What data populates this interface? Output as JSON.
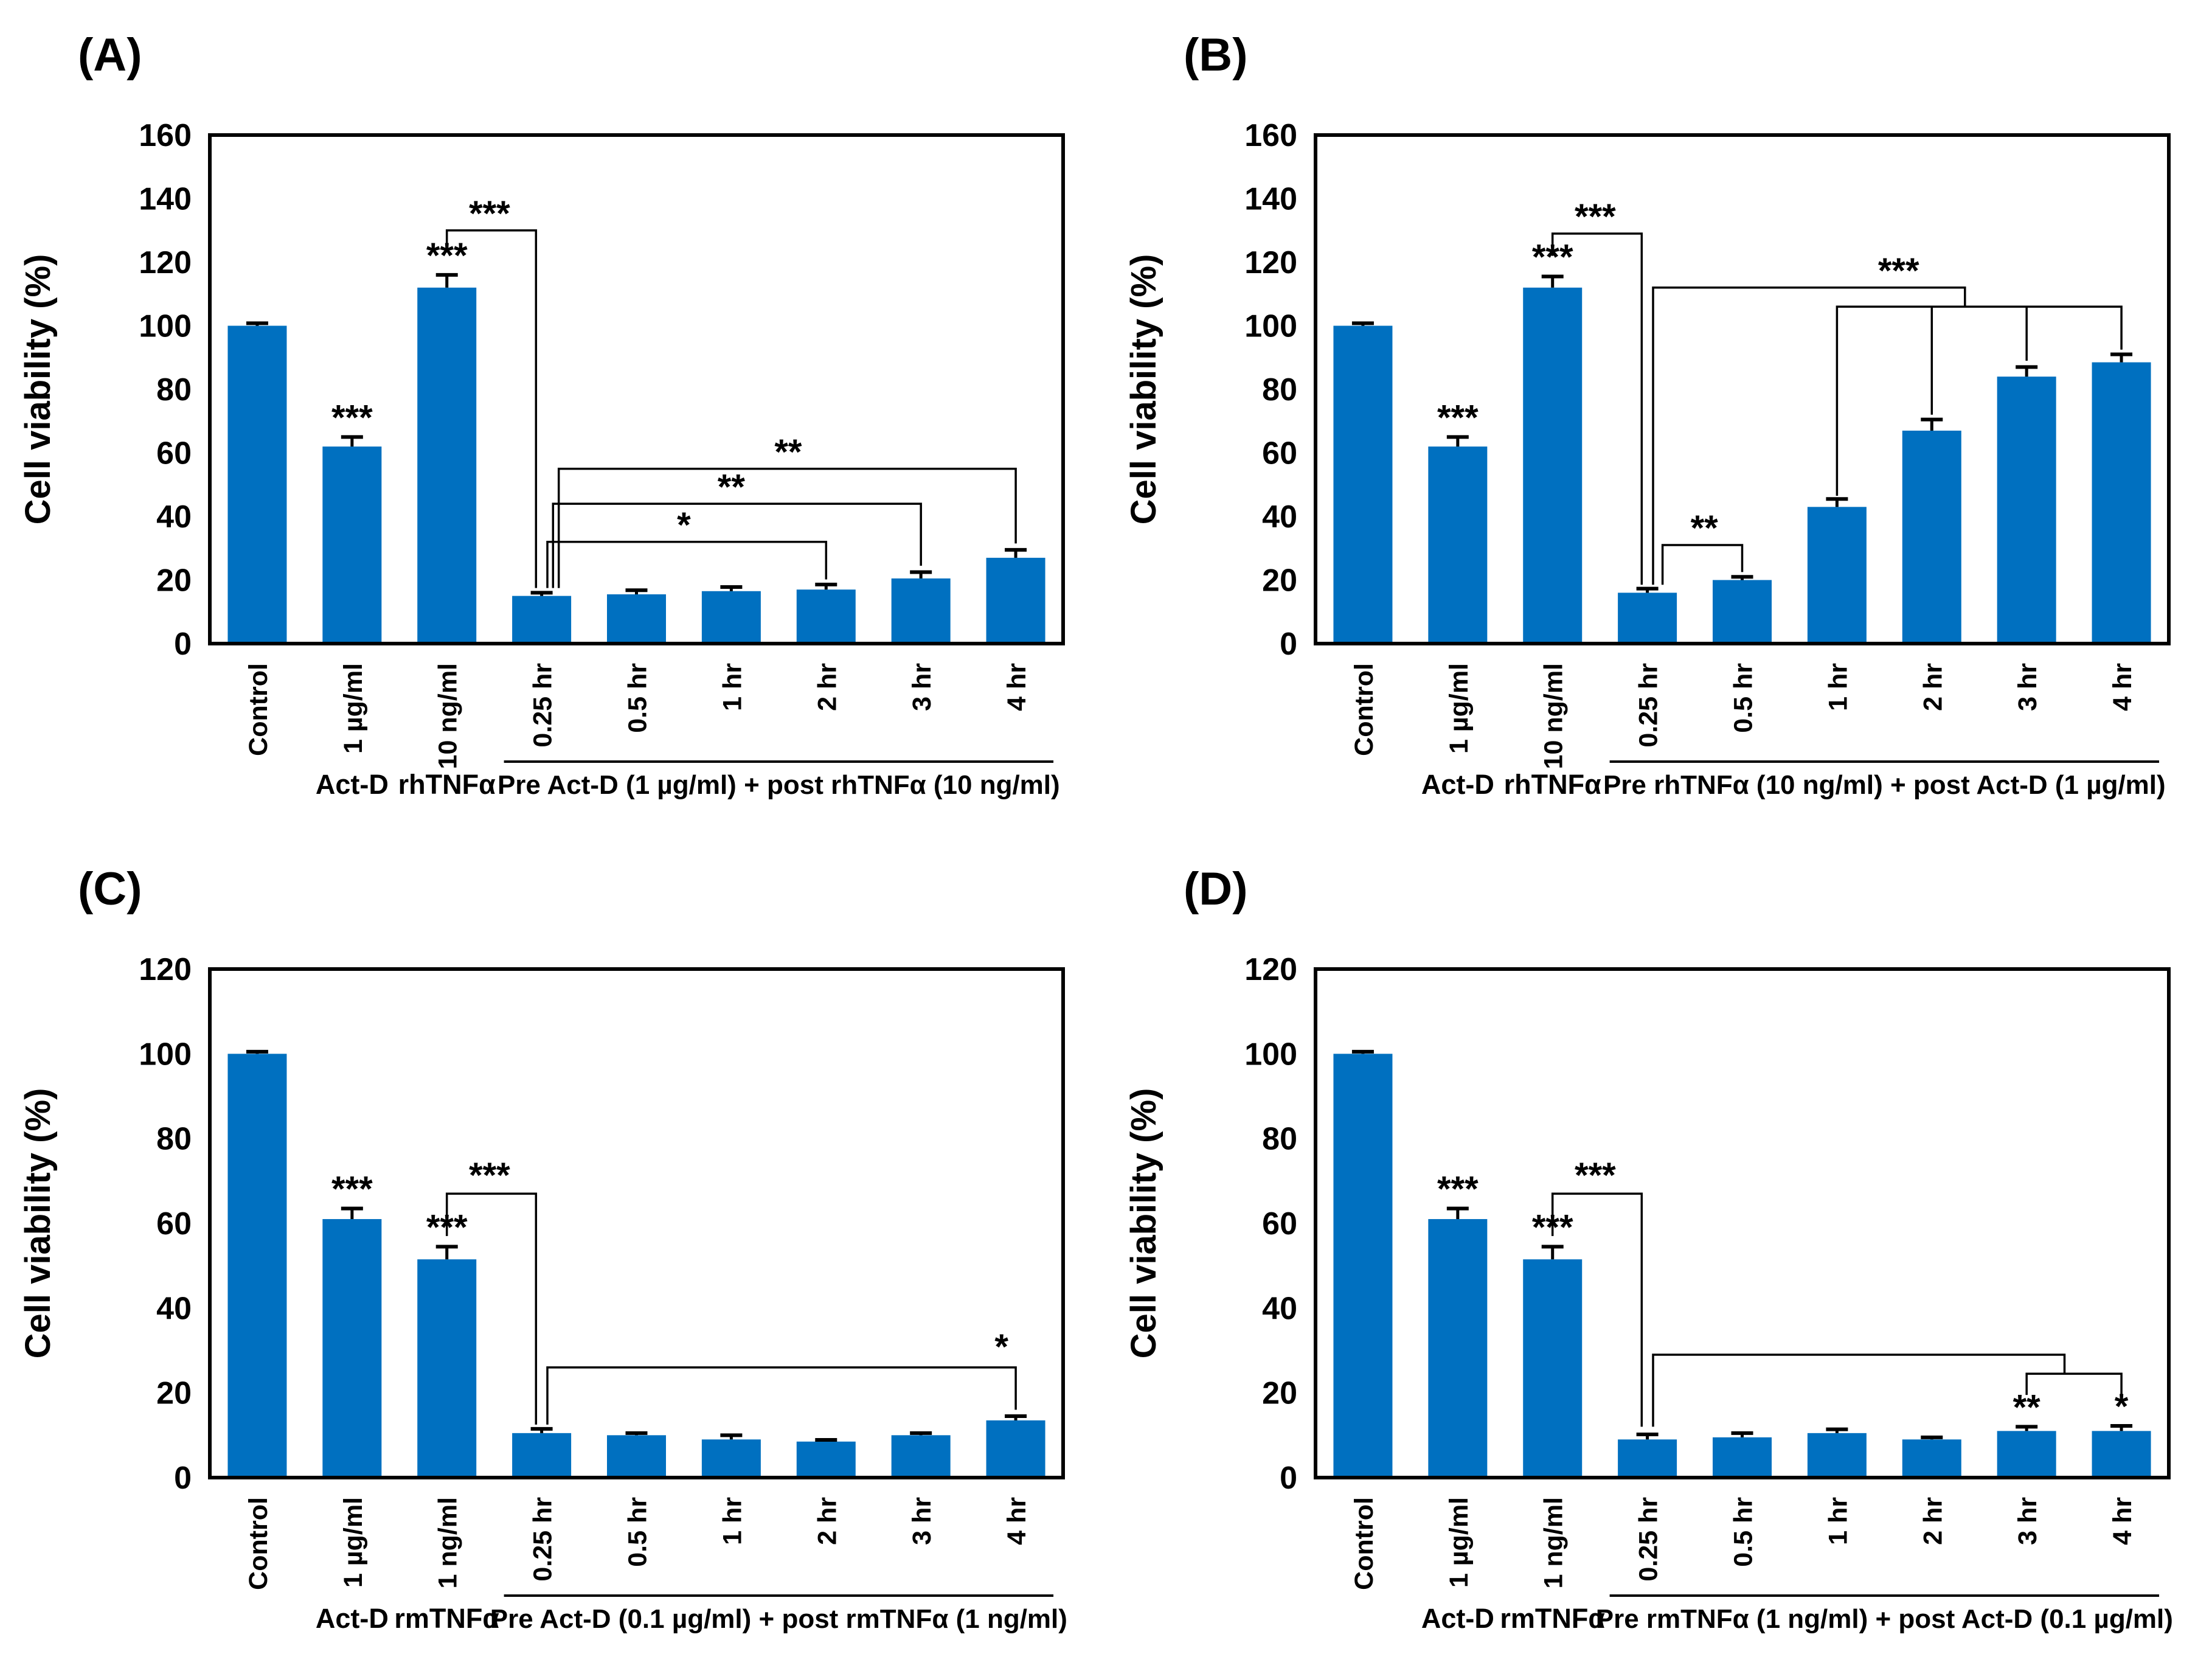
{
  "figure": {
    "bar_color": "#0070C0",
    "axis_color": "#000000",
    "background": "#ffffff"
  },
  "chart_data": [
    {
      "type": "bar",
      "panel_label": "(A)",
      "ylabel": "Cell viability (%)",
      "ylim": [
        0,
        160
      ],
      "ytick_step": 20,
      "grid": false,
      "legend": "none",
      "categories": [
        "Control",
        "1 µg/ml",
        "10 ng/ml",
        "0.25 hr",
        "0.5 hr",
        "1 hr",
        "2 hr",
        "3 hr",
        "4 hr"
      ],
      "values": [
        100,
        62,
        112,
        15,
        15.5,
        16.5,
        17,
        20.5,
        27
      ],
      "errors": [
        0.8,
        3,
        4,
        1,
        1.3,
        1.3,
        1.6,
        2,
        2.5
      ],
      "bar_stars": [
        {
          "index": 1,
          "text": "***"
        },
        {
          "index": 2,
          "text": "***"
        }
      ],
      "group_labels": [
        {
          "index": 1,
          "text": "Act-D"
        },
        {
          "index": 2,
          "text": "rhTNFα"
        }
      ],
      "span_label": {
        "from": 3,
        "to": 8,
        "text": "Pre Act-D (1 µg/ml) + post rhTNFα (10 ng/ml)"
      },
      "brackets": [
        {
          "points": [
            [
              2,
              123
            ],
            [
              2,
              130
            ],
            [
              2.94,
              130
            ],
            [
              2.94,
              17.5
            ]
          ],
          "label": "***",
          "label_at": [
            2.45,
            131.5
          ]
        },
        {
          "points": [
            [
              3.06,
              17.5
            ],
            [
              3.06,
              32
            ],
            [
              6,
              32
            ],
            [
              6,
              20.2
            ]
          ],
          "label": "*",
          "label_at": [
            4.5,
            33.5
          ]
        },
        {
          "points": [
            [
              3.12,
              17.5
            ],
            [
              3.12,
              44
            ],
            [
              7,
              44
            ],
            [
              7,
              24.5
            ]
          ],
          "label": "**",
          "label_at": [
            5,
            45.5
          ]
        },
        {
          "points": [
            [
              3.18,
              17.5
            ],
            [
              3.18,
              55
            ],
            [
              8,
              55
            ],
            [
              8,
              31.5
            ]
          ],
          "label": "**",
          "label_at": [
            5.6,
            56.5
          ]
        }
      ]
    },
    {
      "type": "bar",
      "panel_label": "(B)",
      "ylabel": "Cell viability (%)",
      "ylim": [
        0,
        160
      ],
      "ytick_step": 20,
      "grid": false,
      "legend": "none",
      "categories": [
        "Control",
        "1 µg/ml",
        "10 ng/ml",
        "0.25 hr",
        "0.5 hr",
        "1 hr",
        "2 hr",
        "3 hr",
        "4 hr"
      ],
      "values": [
        100,
        62,
        112,
        16,
        20,
        43,
        67,
        84,
        88.5
      ],
      "errors": [
        0.8,
        3,
        3.5,
        1.3,
        1,
        2.5,
        3.5,
        3,
        2.5
      ],
      "bar_stars": [
        {
          "index": 1,
          "text": "***"
        },
        {
          "index": 2,
          "text": "***"
        }
      ],
      "group_labels": [
        {
          "index": 1,
          "text": "Act-D"
        },
        {
          "index": 2,
          "text": "rhTNFα"
        }
      ],
      "span_label": {
        "from": 3,
        "to": 8,
        "text": "Pre rhTNFα (10 ng/ml) + post Act-D (1 µg/ml)"
      },
      "brackets": [
        {
          "points": [
            [
              2,
              122
            ],
            [
              2,
              129
            ],
            [
              2.94,
              129
            ],
            [
              2.94,
              18.5
            ]
          ],
          "label": "***",
          "label_at": [
            2.45,
            130.5
          ]
        },
        {
          "points": [
            [
              3.16,
              18.5
            ],
            [
              3.16,
              31
            ],
            [
              4,
              31
            ],
            [
              4,
              22.5
            ]
          ],
          "label": "**",
          "label_at": [
            3.6,
            32.5
          ]
        },
        {
          "points": [
            [
              3.06,
              18.5
            ],
            [
              3.06,
              112
            ],
            [
              6.35,
              112
            ],
            [
              6.35,
              106
            ]
          ],
          "label": "***",
          "label_at": [
            5.65,
            113.5
          ]
        },
        {
          "points": [
            [
              5,
              46.5
            ],
            [
              5,
              106
            ],
            [
              8,
              106
            ],
            [
              8,
              92.5
            ]
          ]
        },
        {
          "points": [
            [
              6,
              106
            ],
            [
              6,
              72
            ]
          ]
        },
        {
          "points": [
            [
              7,
              106
            ],
            [
              7,
              89
            ]
          ]
        }
      ]
    },
    {
      "type": "bar",
      "panel_label": "(C)",
      "ylabel": "Cell viability (%)",
      "ylim": [
        0,
        120
      ],
      "ytick_step": 20,
      "grid": false,
      "legend": "none",
      "categories": [
        "Control",
        "1 µg/ml",
        "1 ng/ml",
        "0.25 hr",
        "0.5 hr",
        "1 hr",
        "2 hr",
        "3 hr",
        "4 hr"
      ],
      "values": [
        100,
        61,
        51.5,
        10.5,
        10,
        9,
        8.5,
        10,
        13.5
      ],
      "errors": [
        0.5,
        2.5,
        3,
        1,
        0.5,
        1,
        0.4,
        0.5,
        1
      ],
      "bar_stars": [
        {
          "index": 1,
          "text": "***"
        },
        {
          "index": 2,
          "text": "***"
        }
      ],
      "group_labels": [
        {
          "index": 1,
          "text": "Act-D"
        },
        {
          "index": 2,
          "text": "rmTNFα"
        }
      ],
      "span_label": {
        "from": 3,
        "to": 8,
        "text": "Pre Act-D (0.1 µg/ml) + post rmTNFα (1 ng/ml)"
      },
      "brackets": [
        {
          "points": [
            [
              2,
              57
            ],
            [
              2,
              67
            ],
            [
              2.94,
              67
            ],
            [
              2.94,
              12.5
            ]
          ],
          "label": "***",
          "label_at": [
            2.45,
            68.5
          ]
        },
        {
          "points": [
            [
              3.06,
              12.5
            ],
            [
              3.06,
              26
            ],
            [
              8,
              26
            ],
            [
              8,
              16
            ]
          ],
          "label": "*",
          "label_at": [
            7.85,
            28
          ]
        }
      ]
    },
    {
      "type": "bar",
      "panel_label": "(D)",
      "ylabel": "Cell viability (%)",
      "ylim": [
        0,
        120
      ],
      "ytick_step": 20,
      "grid": false,
      "legend": "none",
      "categories": [
        "Control",
        "1 µg/ml",
        "1 ng/ml",
        "0.25 hr",
        "0.5 hr",
        "1 hr",
        "2 hr",
        "3 hr",
        "4 hr"
      ],
      "values": [
        100,
        61,
        51.5,
        9,
        9.5,
        10.5,
        9,
        11,
        11
      ],
      "errors": [
        0.5,
        2.5,
        3,
        1.2,
        1,
        0.9,
        0.5,
        1,
        1.2
      ],
      "bar_stars": [
        {
          "index": 1,
          "text": "***"
        },
        {
          "index": 2,
          "text": "***"
        },
        {
          "index": 7,
          "text": "**"
        },
        {
          "index": 8,
          "text": "*"
        }
      ],
      "group_labels": [
        {
          "index": 1,
          "text": "Act-D"
        },
        {
          "index": 2,
          "text": "rmTNFα"
        }
      ],
      "span_label": {
        "from": 3,
        "to": 8,
        "text": "Pre rmTNFα (1 ng/ml) + post Act-D (0.1 µg/ml)"
      },
      "brackets": [
        {
          "points": [
            [
              2,
              57
            ],
            [
              2,
              67
            ],
            [
              2.94,
              67
            ],
            [
              2.94,
              12
            ]
          ],
          "label": "***",
          "label_at": [
            2.45,
            68.5
          ]
        },
        {
          "points": [
            [
              3.06,
              12
            ],
            [
              3.06,
              29
            ],
            [
              7.4,
              29
            ],
            [
              7.4,
              24.5
            ]
          ]
        },
        {
          "points": [
            [
              7,
              19.5
            ],
            [
              7,
              24.5
            ],
            [
              8,
              24.5
            ],
            [
              8,
              19.5
            ]
          ]
        }
      ]
    }
  ]
}
